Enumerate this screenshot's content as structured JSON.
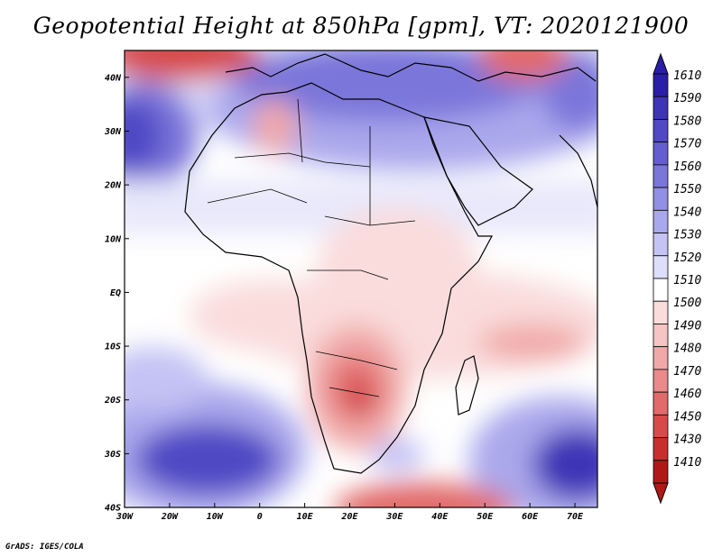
{
  "title": "Geopotential Height at 850hPa [gpm], VT: 2020121900",
  "footer": "GrADS: IGES/COLA",
  "colors": {
    "deep_blue": "#3a2fb0",
    "blue": "#6a6ae0",
    "light_blue": "#b8b8f0",
    "pale_blue": "#e2e2fa",
    "white": "#ffffff",
    "pale_red": "#fad8d8",
    "light_red": "#f2a8a8",
    "red": "#e05050",
    "deep_red": "#b81c1c",
    "coast": "#000000"
  },
  "map": {
    "lon_range": [
      -30,
      75
    ],
    "lat_range": [
      -40,
      45
    ],
    "lon_ticks": [
      "30W",
      "20W",
      "10W",
      "0",
      "10E",
      "20E",
      "30E",
      "40E",
      "50E",
      "60E",
      "70E"
    ],
    "lat_ticks": [
      "40S",
      "30S",
      "20S",
      "10S",
      "EQ",
      "10N",
      "20N",
      "30N",
      "40N"
    ]
  },
  "colorbar": {
    "levels": [
      "1610",
      "1590",
      "1580",
      "1570",
      "1560",
      "1550",
      "1540",
      "1530",
      "1520",
      "1510",
      "1500",
      "1490",
      "1480",
      "1470",
      "1460",
      "1450",
      "1430",
      "1410"
    ],
    "colors": [
      "#2a1ea8",
      "#3d34b6",
      "#5048c4",
      "#645ed0",
      "#7a76da",
      "#9290e4",
      "#aaa8ec",
      "#c4c3f4",
      "#dedefa",
      "#ffffff",
      "#fadcdc",
      "#f6c4c4",
      "#f0a8a8",
      "#ea8a8a",
      "#e26a6a",
      "#d84a4a",
      "#c82e2e",
      "#b01818"
    ]
  }
}
